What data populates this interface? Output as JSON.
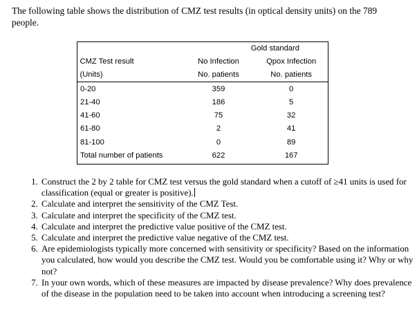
{
  "intro": "The following table shows the distribution of CMZ test results (in optical density units) on the 789 people.",
  "table": {
    "group_header": "Gold standard",
    "header1": [
      "CMZ Test result",
      "No Infection",
      "Qpox Infection"
    ],
    "header2": [
      "(Units)",
      "No. patients",
      "No. patients"
    ],
    "rows": [
      [
        "0-20",
        "359",
        "0"
      ],
      [
        "21-40",
        "186",
        "5"
      ],
      [
        "41-60",
        "75",
        "32"
      ],
      [
        "61-80",
        "2",
        "41"
      ],
      [
        "81-100",
        "0",
        "89"
      ],
      [
        "Total number of patients",
        "622",
        "167"
      ]
    ]
  },
  "questions": [
    "Construct the 2 by 2 table for CMZ test versus the gold standard when a cutoff of ≥41 units is used for classification (equal or greater is positive).",
    "Calculate and interpret the sensitivity of the CMZ Test.",
    "Calculate and interpret the specificity of the CMZ test.",
    "Calculate and interpret the predictive value positive of the CMZ test.",
    "Calculate and interpret the predictive value negative of the CMZ test.",
    "Are epidemiologists typically more concerned with sensitivity or specificity? Based on the information you calculated, how would you describe the CMZ test. Would you be comfortable using it? Why or why not?",
    "In your own words, which of these measures are impacted by disease prevalence? Why does prevalence of the disease in the population need to be taken into account when introducing a screening test?"
  ]
}
